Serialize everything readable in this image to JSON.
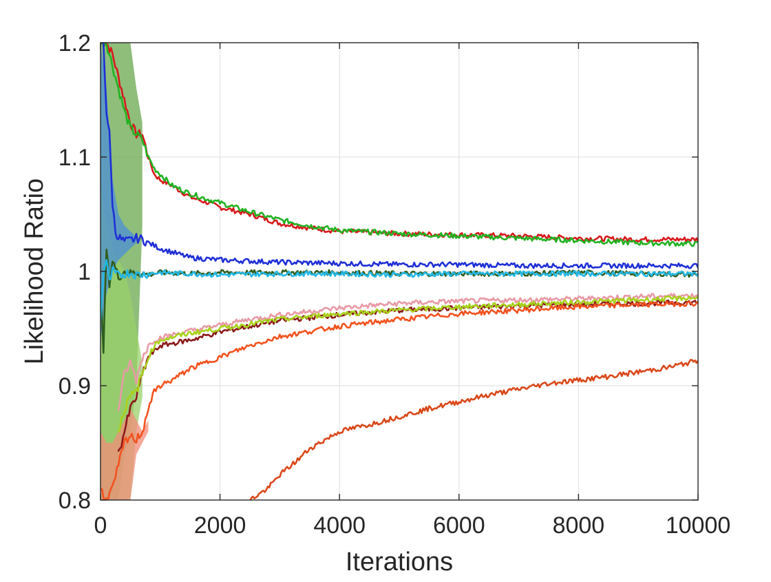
{
  "chart_data": {
    "type": "line",
    "title": "",
    "xlabel": "Iterations",
    "ylabel": "Likelihood Ratio",
    "xlim": [
      0,
      10000
    ],
    "ylim": [
      0.8,
      1.2
    ],
    "x_ticks": [
      0,
      2000,
      4000,
      6000,
      8000,
      10000
    ],
    "x_tick_labels": [
      "0",
      "2000",
      "4000",
      "6000",
      "8000",
      "10000"
    ],
    "y_ticks": [
      0.8,
      0.9,
      1.0,
      1.1,
      1.2
    ],
    "y_tick_labels": [
      "0.8",
      "0.9",
      "1",
      "1.1",
      "1.2"
    ],
    "grid": true,
    "legend": "none",
    "bands": [
      {
        "color": "#6aa84f",
        "x": [
          0,
          100,
          200,
          300,
          400,
          500,
          600,
          700
        ],
        "lower": [
          0.8,
          0.8,
          0.8,
          0.8,
          0.84,
          0.86,
          0.9,
          1.04
        ],
        "upper": [
          1.2,
          1.2,
          1.2,
          1.2,
          1.2,
          1.2,
          1.16,
          1.13
        ]
      },
      {
        "color": "#9ad06a",
        "x": [
          0,
          100,
          200,
          300,
          400,
          500,
          600,
          700
        ],
        "lower": [
          0.8,
          0.8,
          0.8,
          0.8,
          0.8,
          0.8,
          0.86,
          0.89
        ],
        "upper": [
          1.08,
          1.04,
          1.02,
          1.01,
          1.0,
          0.98,
          0.95,
          0.92
        ]
      },
      {
        "color": "#f28c7a",
        "x": [
          0,
          100,
          200,
          300,
          400,
          500,
          600,
          700,
          800
        ],
        "lower": [
          0.8,
          0.8,
          0.8,
          0.8,
          0.8,
          0.8,
          0.84,
          0.85,
          0.86
        ],
        "upper": [
          0.86,
          0.85,
          0.85,
          0.86,
          0.87,
          0.88,
          0.87,
          0.86,
          0.87
        ]
      },
      {
        "color": "#4b8fd6",
        "x": [
          0,
          100,
          200,
          300,
          400,
          500,
          600
        ],
        "lower": [
          0.94,
          0.98,
          1.0,
          1.01,
          1.015,
          1.02,
          1.025
        ],
        "upper": [
          1.2,
          1.16,
          1.08,
          1.05,
          1.04,
          1.035,
          1.03
        ]
      }
    ],
    "series": [
      {
        "color": "#d7191c",
        "x": [
          0,
          100,
          200,
          300,
          400,
          500,
          600,
          700,
          800,
          900,
          1000,
          1200,
          1500,
          1800,
          2000,
          2500,
          3000,
          3500,
          4000,
          5000,
          6000,
          7000,
          8000,
          9000,
          10000
        ],
        "y": [
          1.2,
          1.2,
          1.19,
          1.17,
          1.15,
          1.13,
          1.12,
          1.12,
          1.1,
          1.085,
          1.08,
          1.075,
          1.065,
          1.06,
          1.056,
          1.05,
          1.042,
          1.038,
          1.035,
          1.033,
          1.032,
          1.031,
          1.029,
          1.028,
          1.028
        ]
      },
      {
        "color": "#22b222",
        "x": [
          0,
          100,
          200,
          300,
          400,
          500,
          600,
          700,
          800,
          900,
          1000,
          1200,
          1500,
          1800,
          2000,
          2500,
          3000,
          3500,
          4000,
          5000,
          6000,
          7000,
          8000,
          9000,
          10000
        ],
        "y": [
          1.2,
          1.2,
          1.18,
          1.16,
          1.14,
          1.125,
          1.12,
          1.115,
          1.1,
          1.09,
          1.085,
          1.075,
          1.068,
          1.063,
          1.06,
          1.052,
          1.045,
          1.04,
          1.036,
          1.033,
          1.031,
          1.029,
          1.027,
          1.025,
          1.024
        ]
      },
      {
        "color": "#1f2fd6",
        "x": [
          0,
          50,
          100,
          150,
          200,
          250,
          300,
          400,
          500,
          600,
          700,
          800,
          1000,
          1500,
          2000,
          3000,
          4000,
          5000,
          6000,
          7000,
          8000,
          9000,
          10000
        ],
        "y": [
          1.2,
          1.2,
          1.14,
          1.12,
          1.06,
          1.035,
          1.03,
          1.026,
          1.027,
          1.029,
          1.028,
          1.025,
          1.02,
          1.012,
          1.01,
          1.008,
          1.007,
          1.006,
          1.006,
          1.005,
          1.005,
          1.005,
          1.005
        ]
      },
      {
        "color": "#2f5d1e",
        "x": [
          0,
          50,
          100,
          150,
          200,
          300,
          400,
          500,
          600,
          800,
          1000,
          1500,
          2000,
          3000,
          4000,
          5000,
          6000,
          7000,
          8000,
          9000,
          10000
        ],
        "y": [
          0.98,
          0.93,
          1.02,
          0.99,
          1.01,
          0.995,
          1.0,
          0.998,
          0.999,
          0.997,
          0.999,
          0.998,
          0.999,
          0.999,
          0.999,
          0.998,
          0.998,
          0.998,
          0.999,
          0.998,
          0.997
        ]
      },
      {
        "color": "#23b7e5",
        "x": [
          0,
          50,
          100,
          150,
          200,
          300,
          400,
          500,
          600,
          800,
          1000,
          1500,
          2000,
          3000,
          4000,
          5000,
          6000,
          7000,
          8000,
          9000,
          10000
        ],
        "y": [
          0.96,
          1.0,
          1.01,
          0.99,
          1.0,
          0.996,
          0.998,
          0.999,
          0.997,
          0.998,
          0.999,
          0.998,
          0.997,
          0.998,
          0.998,
          0.997,
          0.998,
          0.998,
          0.998,
          0.998,
          0.998
        ]
      },
      {
        "color": "#8b1a1a",
        "x": [
          300,
          400,
          500,
          600,
          700,
          800,
          900,
          1000,
          1500,
          2000,
          2500,
          3000,
          4000,
          5000,
          6000,
          7000,
          8000,
          9000,
          10000
        ],
        "y": [
          0.84,
          0.86,
          0.88,
          0.89,
          0.91,
          0.925,
          0.93,
          0.935,
          0.94,
          0.947,
          0.952,
          0.957,
          0.962,
          0.966,
          0.968,
          0.97,
          0.971,
          0.972,
          0.973
        ]
      },
      {
        "color": "#e89aa6",
        "x": [
          300,
          400,
          500,
          600,
          700,
          800,
          900,
          1000,
          1500,
          2000,
          2500,
          3000,
          4000,
          5000,
          6000,
          7000,
          8000,
          9000,
          10000
        ],
        "y": [
          0.88,
          0.91,
          0.92,
          0.905,
          0.925,
          0.935,
          0.94,
          0.942,
          0.948,
          0.953,
          0.958,
          0.962,
          0.968,
          0.972,
          0.974,
          0.975,
          0.976,
          0.978,
          0.979
        ]
      },
      {
        "color": "#a8d21a",
        "x": [
          300,
          400,
          500,
          600,
          700,
          800,
          900,
          1000,
          1500,
          2000,
          2500,
          3000,
          4000,
          5000,
          6000,
          7000,
          8000,
          9000,
          10000
        ],
        "y": [
          0.86,
          0.88,
          0.89,
          0.895,
          0.91,
          0.925,
          0.935,
          0.94,
          0.946,
          0.95,
          0.954,
          0.958,
          0.963,
          0.966,
          0.969,
          0.971,
          0.973,
          0.975,
          0.977
        ]
      },
      {
        "color": "#f2521f",
        "x": [
          0,
          100,
          200,
          300,
          400,
          500,
          600,
          700,
          800,
          900,
          1000,
          1200,
          1500,
          2000,
          2500,
          3000,
          4000,
          5000,
          6000,
          7000,
          8000,
          9000,
          10000
        ],
        "y": [
          0.81,
          0.8,
          0.81,
          0.83,
          0.85,
          0.855,
          0.853,
          0.86,
          0.88,
          0.895,
          0.9,
          0.905,
          0.915,
          0.925,
          0.935,
          0.943,
          0.952,
          0.958,
          0.963,
          0.966,
          0.969,
          0.971,
          0.972
        ]
      },
      {
        "color": "#d9481a",
        "x": [
          2500,
          2800,
          3000,
          3300,
          3500,
          4000,
          4500,
          5000,
          5500,
          6000,
          6500,
          7000,
          7500,
          8000,
          8500,
          9000,
          9500,
          10000
        ],
        "y": [
          0.8,
          0.81,
          0.822,
          0.835,
          0.845,
          0.86,
          0.866,
          0.873,
          0.88,
          0.886,
          0.892,
          0.897,
          0.902,
          0.905,
          0.908,
          0.912,
          0.916,
          0.922
        ]
      }
    ]
  }
}
